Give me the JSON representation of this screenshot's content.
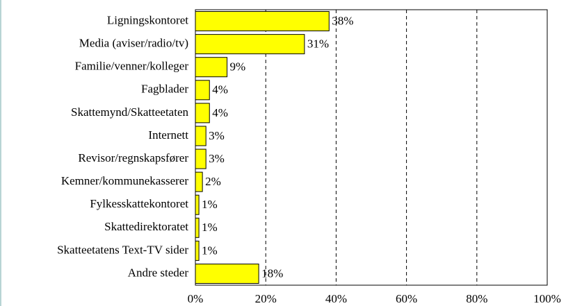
{
  "chart_data": {
    "type": "barh",
    "categories": [
      "Ligningskontoret",
      "Media (aviser/radio/tv)",
      "Familie/venner/kolleger",
      "Fagblader",
      "Skattemynd/Skatteetaten",
      "Internett",
      "Revisor/regnskapsfører",
      "Kemner/kommunekasserer",
      "Fylkesskattekontoret",
      "Skattedirektoratet",
      "Skatteetatens Text-TV sider",
      "Andre steder"
    ],
    "values": [
      38,
      31,
      9,
      4,
      4,
      3,
      3,
      2,
      1,
      1,
      1,
      18
    ],
    "value_labels": [
      "38%",
      "31%",
      "9%",
      "4%",
      "4%",
      "3%",
      "3%",
      "2%",
      "1%",
      "1%",
      "1%",
      "18%"
    ],
    "color": "#ffff00",
    "xlim": [
      0,
      100
    ],
    "xticks": [
      {
        "value": 0,
        "label": "0%"
      },
      {
        "value": 20,
        "label": "20%"
      },
      {
        "value": 40,
        "label": "40%"
      },
      {
        "value": 60,
        "label": "60%"
      },
      {
        "value": 80,
        "label": "80%"
      },
      {
        "value": 100,
        "label": "100%"
      }
    ],
    "grid": true
  }
}
